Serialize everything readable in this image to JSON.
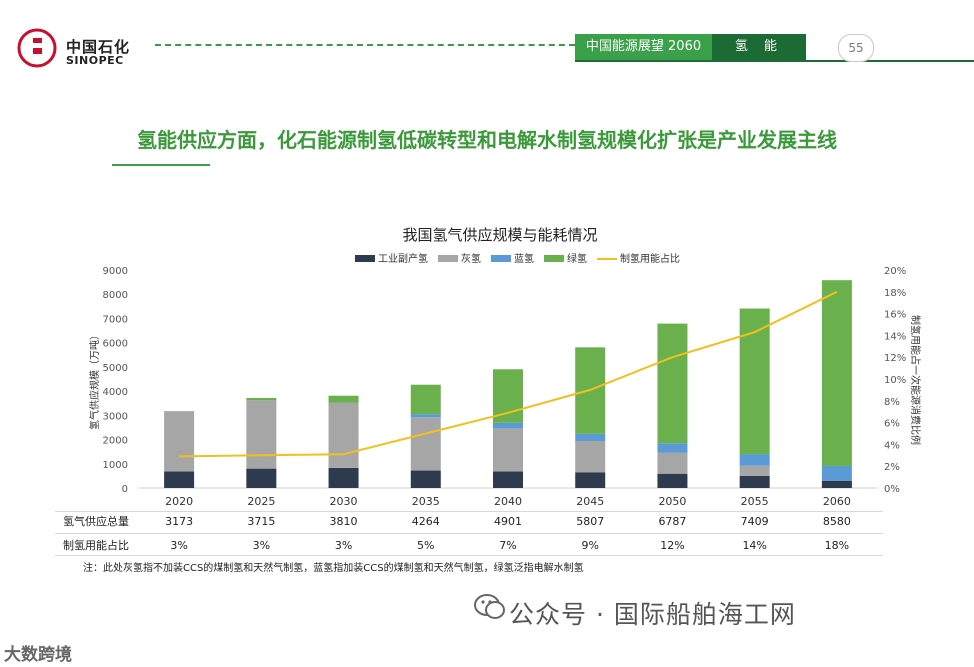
{
  "header": {
    "logo_cn": "中国石化",
    "logo_en": "SINOPEC",
    "report_title": "中国能源展望 2060",
    "section": "氢 能",
    "page_number": "55"
  },
  "headline": "氢能供应方面，化石能源制氢低碳转型和电解水制氢规模化扩张是产业发展主线",
  "colors": {
    "brand_green": "#3aa04a",
    "dark_green": "#1d6b34",
    "industrial": "#2e3b4e",
    "grey": "#a6a6a6",
    "blue": "#5b9bd5",
    "green": "#6ab04c",
    "line": "#f2c01e"
  },
  "chart_data": {
    "type": "bar",
    "stacked": true,
    "title": "我国氢气供应规模与能耗情况",
    "categories": [
      "2020",
      "2025",
      "2030",
      "2035",
      "2040",
      "2045",
      "2050",
      "2055",
      "2060"
    ],
    "series": [
      {
        "name": "工业副产氢",
        "color": "#2e3b4e",
        "values": [
          680,
          800,
          830,
          720,
          680,
          640,
          590,
          500,
          290
        ]
      },
      {
        "name": "灰氢",
        "color": "#a6a6a6",
        "values": [
          2493,
          2820,
          2700,
          2200,
          1780,
          1300,
          860,
          420,
          0
        ]
      },
      {
        "name": "蓝氢",
        "color": "#5b9bd5",
        "values": [
          0,
          0,
          0,
          130,
          230,
          300,
          400,
          480,
          620
        ]
      },
      {
        "name": "绿氢",
        "color": "#6ab04c",
        "values": [
          0,
          95,
          280,
          1214,
          2211,
          3567,
          4937,
          6009,
          7670
        ]
      }
    ],
    "line_series": {
      "name": "制氢用能占比",
      "color": "#f2c01e",
      "values": [
        2.9,
        3.0,
        3.1,
        5.0,
        6.9,
        9.0,
        12.0,
        14.3,
        18.0
      ]
    },
    "ylabel": "氢气供应规模（万吨）",
    "y2label": "制氢用能占一次能源消费比例",
    "ylim": [
      0,
      9000
    ],
    "yticks": [
      "0",
      "1000",
      "2000",
      "3000",
      "4000",
      "5000",
      "6000",
      "7000",
      "8000",
      "9000"
    ],
    "y2lim": [
      0,
      20
    ],
    "y2ticks": [
      "0%",
      "2%",
      "4%",
      "6%",
      "8%",
      "10%",
      "12%",
      "14%",
      "16%",
      "18%",
      "20%"
    ],
    "legend_position": "top-center",
    "table": {
      "row1_label": "氢气供应总量",
      "row1": [
        "3173",
        "3715",
        "3810",
        "4264",
        "4901",
        "5807",
        "6787",
        "7409",
        "8580"
      ],
      "row2_label": "制氢用能占比",
      "row2": [
        "3%",
        "3%",
        "3%",
        "5%",
        "7%",
        "9%",
        "12%",
        "14%",
        "18%"
      ]
    }
  },
  "footnote": "注：此处灰氢指不加装CCS的煤制氢和天然气制氢，蓝氢指加装CCS的煤制氢和天然气制氢，绿氢泛指电解水制氢",
  "watermark": {
    "source": "公众号 · 国际船舶海工网",
    "corner": "大数跨境"
  }
}
